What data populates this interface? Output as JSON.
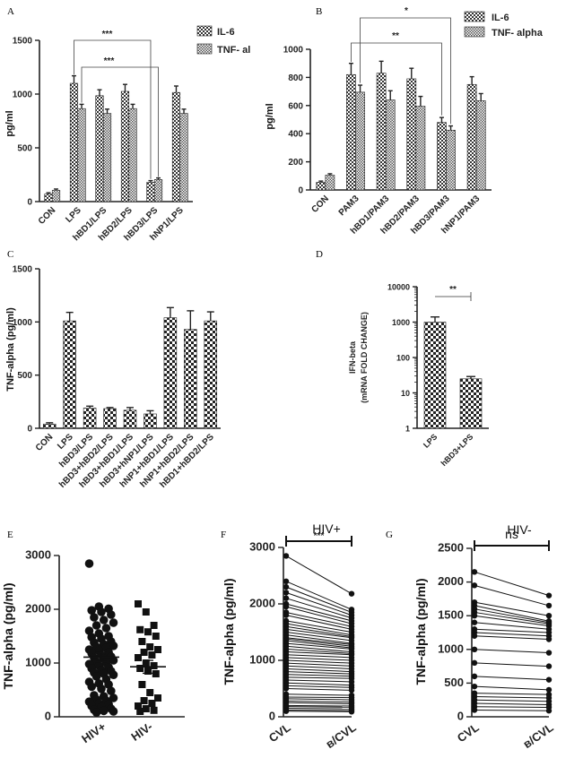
{
  "chart_data": [
    {
      "panel": "A",
      "type": "bar",
      "ylabel": "pg/ml",
      "ylim": [
        0,
        1500
      ],
      "yticks": [
        0,
        500,
        1000,
        1500
      ],
      "categories": [
        "CON",
        "LPS",
        "hBD1/LPS",
        "hBD2/LPS",
        "hBD3/LPS",
        "hNP1/LPS"
      ],
      "series": [
        {
          "name": "IL-6",
          "values": [
            70,
            1100,
            985,
            1025,
            180,
            1015
          ],
          "errors": [
            12,
            70,
            55,
            65,
            15,
            60
          ]
        },
        {
          "name": "TNF- al",
          "values": [
            105,
            865,
            820,
            865,
            205,
            820
          ],
          "errors": [
            12,
            40,
            40,
            40,
            15,
            40
          ]
        }
      ],
      "annotations": [
        {
          "text": "***",
          "from": "LPS",
          "to": "hBD3/LPS",
          "series": "IL-6"
        },
        {
          "text": "***",
          "from": "LPS",
          "to": "hBD3/LPS",
          "series": "TNF- al"
        }
      ]
    },
    {
      "panel": "B",
      "type": "bar",
      "ylabel": "pg/ml",
      "ylim": [
        0,
        1000
      ],
      "yticks": [
        0,
        200,
        400,
        600,
        800,
        1000
      ],
      "categories": [
        "CON",
        "PAM3",
        "hBD1/PAM3",
        "hBD2/PAM3",
        "hBD3/PAM3",
        "hNP1/PAM3"
      ],
      "series": [
        {
          "name": "IL-6",
          "values": [
            55,
            820,
            830,
            790,
            480,
            750
          ],
          "errors": [
            8,
            80,
            85,
            75,
            35,
            55
          ]
        },
        {
          "name": "TNF- alpha",
          "values": [
            105,
            695,
            640,
            595,
            425,
            635
          ],
          "errors": [
            10,
            50,
            65,
            70,
            30,
            50
          ]
        }
      ],
      "annotations": [
        {
          "text": "*",
          "from": "PAM3",
          "to": "hBD3/PAM3",
          "series": "TNF- alpha"
        },
        {
          "text": "**",
          "from": "PAM3",
          "to": "hBD3/PAM3",
          "series": "IL-6"
        }
      ]
    },
    {
      "panel": "C",
      "type": "bar",
      "ylabel": "TNF-alpha (pg/ml)",
      "ylim": [
        0,
        1500
      ],
      "yticks": [
        0,
        500,
        1000,
        1500
      ],
      "categories": [
        "CON",
        "LPS",
        "hBD3/LPS",
        "hBD3+hBD2/LPS",
        "hBD3+hBD1/LPS",
        "hBD3+hNP1/LPS",
        "hNP1+hBD1/LPS",
        "hNP1+hBD2/LPS",
        "hBD1+hBD2/LPS"
      ],
      "values": [
        40,
        1010,
        190,
        185,
        170,
        135,
        1040,
        930,
        1010
      ],
      "errors": [
        12,
        80,
        18,
        10,
        25,
        30,
        95,
        175,
        85
      ]
    },
    {
      "panel": "D",
      "type": "bar",
      "yscale": "log",
      "ylabel": "IFN-beta (mRNA FOLD CHANGE)",
      "ylim": [
        1,
        10000
      ],
      "yticks": [
        "1",
        "10",
        "100",
        "1000",
        "10000"
      ],
      "categories": [
        "LPS",
        "hBD3+LPS"
      ],
      "values": [
        1000,
        25
      ],
      "errors_upper": [
        1400,
        29
      ],
      "annotations": [
        {
          "text": "**",
          "from": "LPS",
          "to": "hBD3+LPS"
        }
      ]
    },
    {
      "panel": "E",
      "type": "scatter",
      "ylabel": "TNF-alpha (pg/ml)",
      "ylim": [
        0,
        3000
      ],
      "yticks": [
        0,
        1000,
        2000,
        3000
      ],
      "categories": [
        "HIV+",
        "HIV-"
      ],
      "groups": [
        {
          "name": "HIV+",
          "mean": 1110,
          "sem": 85,
          "values": [
            2850,
            2050,
            2010,
            1980,
            1950,
            1900,
            1850,
            1800,
            1750,
            1700,
            1650,
            1600,
            1550,
            1500,
            1480,
            1450,
            1400,
            1380,
            1350,
            1320,
            1300,
            1280,
            1250,
            1230,
            1200,
            1180,
            1150,
            1120,
            1100,
            1080,
            1050,
            1020,
            1000,
            980,
            950,
            920,
            900,
            870,
            850,
            820,
            800,
            780,
            750,
            700,
            650,
            620,
            600,
            560,
            520,
            480,
            400,
            380,
            350,
            320,
            300,
            280,
            250,
            230,
            200,
            180,
            150,
            130,
            110,
            100,
            80
          ]
        },
        {
          "name": "HIV-",
          "mean": 930,
          "sem": 120,
          "values": [
            2100,
            1950,
            1700,
            1620,
            1580,
            1500,
            1400,
            1300,
            1250,
            1200,
            1150,
            1100,
            1000,
            950,
            900,
            850,
            800,
            600,
            450,
            350,
            300,
            250,
            200,
            150,
            120,
            100
          ]
        }
      ]
    },
    {
      "panel": "F",
      "type": "line",
      "title": "HIV+",
      "ylabel": "TNF-alpha (pg/ml)",
      "ylim": [
        0,
        3000
      ],
      "yticks": [
        0,
        1000,
        2000,
        3000
      ],
      "categories": [
        "CVL",
        "в/CVL"
      ],
      "significance": "***",
      "pairs": [
        [
          2850,
          2180
        ],
        [
          2400,
          1900
        ],
        [
          2300,
          1850
        ],
        [
          2200,
          1800
        ],
        [
          2100,
          1750
        ],
        [
          2000,
          1700
        ],
        [
          1950,
          1650
        ],
        [
          1850,
          1600
        ],
        [
          1800,
          1550
        ],
        [
          1700,
          1500
        ],
        [
          1650,
          1450
        ],
        [
          1600,
          1420
        ],
        [
          1550,
          1400
        ],
        [
          1500,
          1350
        ],
        [
          1450,
          1300
        ],
        [
          1400,
          1280
        ],
        [
          1380,
          1250
        ],
        [
          1350,
          1220
        ],
        [
          1300,
          1200
        ],
        [
          1250,
          1150
        ],
        [
          1200,
          1120
        ],
        [
          1150,
          1100
        ],
        [
          1100,
          1050
        ],
        [
          1050,
          1000
        ],
        [
          1000,
          950
        ],
        [
          950,
          900
        ],
        [
          900,
          850
        ],
        [
          850,
          800
        ],
        [
          800,
          760
        ],
        [
          750,
          720
        ],
        [
          700,
          680
        ],
        [
          650,
          620
        ],
        [
          600,
          560
        ],
        [
          550,
          520
        ],
        [
          500,
          470
        ],
        [
          400,
          380
        ],
        [
          350,
          340
        ],
        [
          320,
          300
        ],
        [
          280,
          260
        ],
        [
          250,
          230
        ],
        [
          200,
          190
        ],
        [
          180,
          170
        ],
        [
          150,
          140
        ],
        [
          120,
          110
        ],
        [
          100,
          90
        ]
      ]
    },
    {
      "panel": "G",
      "type": "line",
      "title": "HIV-",
      "ylabel": "TNF-alpha (pg/ml)",
      "ylim": [
        0,
        2500
      ],
      "yticks": [
        0,
        500,
        1000,
        1500,
        2000,
        2500
      ],
      "categories": [
        "CVL",
        "в/CVL"
      ],
      "significance": "ns",
      "pairs": [
        [
          2150,
          1800
        ],
        [
          1950,
          1650
        ],
        [
          1700,
          1500
        ],
        [
          1650,
          1420
        ],
        [
          1600,
          1400
        ],
        [
          1550,
          1380
        ],
        [
          1500,
          1350
        ],
        [
          1400,
          1300
        ],
        [
          1300,
          1250
        ],
        [
          1250,
          1200
        ],
        [
          1200,
          1150
        ],
        [
          1000,
          950
        ],
        [
          800,
          750
        ],
        [
          600,
          550
        ],
        [
          450,
          400
        ],
        [
          350,
          330
        ],
        [
          300,
          280
        ],
        [
          250,
          230
        ],
        [
          200,
          180
        ],
        [
          150,
          140
        ],
        [
          100,
          90
        ]
      ]
    }
  ],
  "panel_letters": [
    "A",
    "B",
    "C",
    "D",
    "E",
    "F",
    "G"
  ]
}
